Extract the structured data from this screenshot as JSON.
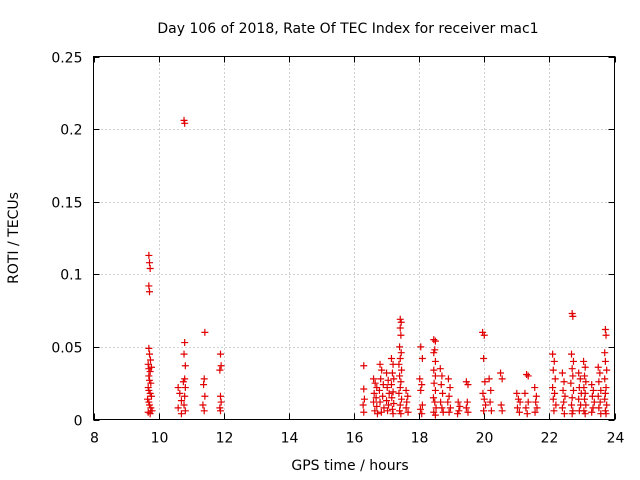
{
  "chart_data": {
    "type": "scatter",
    "title": "Day 106 of 2018, Rate Of TEC Index for receiver mac1",
    "xlabel": "GPS time / hours",
    "ylabel": "ROTI / TECUs",
    "xlim": [
      8,
      24
    ],
    "ylim": [
      0,
      0.25
    ],
    "xticks": [
      8,
      10,
      12,
      14,
      16,
      18,
      20,
      22,
      24
    ],
    "yticks": [
      0,
      0.05,
      0.1,
      0.15,
      0.2,
      0.25
    ],
    "xtick_labels": [
      "8",
      "10",
      "12",
      "14",
      "16",
      "18",
      "20",
      "22",
      "24"
    ],
    "ytick_labels": [
      "0",
      "0.05",
      "0.1",
      "0.15",
      "0.2",
      "0.25"
    ],
    "grid": true,
    "marker": "plus",
    "color": "#e00000",
    "series": [
      {
        "name": "ROTI",
        "points": [
          [
            9.7,
            0.113
          ],
          [
            9.72,
            0.108
          ],
          [
            9.74,
            0.104
          ],
          [
            9.7,
            0.092
          ],
          [
            9.72,
            0.088
          ],
          [
            9.7,
            0.049
          ],
          [
            9.72,
            0.045
          ],
          [
            9.75,
            0.041
          ],
          [
            9.68,
            0.038
          ],
          [
            9.7,
            0.035
          ],
          [
            9.74,
            0.033
          ],
          [
            9.78,
            0.036
          ],
          [
            9.7,
            0.03
          ],
          [
            9.72,
            0.027
          ],
          [
            9.76,
            0.025
          ],
          [
            9.68,
            0.022
          ],
          [
            9.7,
            0.02
          ],
          [
            9.74,
            0.018
          ],
          [
            9.78,
            0.016
          ],
          [
            9.66,
            0.014
          ],
          [
            9.7,
            0.012
          ],
          [
            9.72,
            0.01
          ],
          [
            9.76,
            0.008
          ],
          [
            9.8,
            0.006
          ],
          [
            9.68,
            0.005
          ],
          [
            9.74,
            0.004
          ],
          [
            10.78,
            0.206
          ],
          [
            10.8,
            0.204
          ],
          [
            10.8,
            0.053
          ],
          [
            10.78,
            0.045
          ],
          [
            10.82,
            0.037
          ],
          [
            10.8,
            0.028
          ],
          [
            10.76,
            0.026
          ],
          [
            10.82,
            0.022
          ],
          [
            10.6,
            0.022
          ],
          [
            10.65,
            0.018
          ],
          [
            10.8,
            0.016
          ],
          [
            10.7,
            0.013
          ],
          [
            10.78,
            0.01
          ],
          [
            10.6,
            0.008
          ],
          [
            10.82,
            0.006
          ],
          [
            10.7,
            0.004
          ],
          [
            11.42,
            0.06
          ],
          [
            11.4,
            0.028
          ],
          [
            11.38,
            0.024
          ],
          [
            11.42,
            0.016
          ],
          [
            11.36,
            0.01
          ],
          [
            11.4,
            0.006
          ],
          [
            11.9,
            0.045
          ],
          [
            11.92,
            0.037
          ],
          [
            11.88,
            0.034
          ],
          [
            11.9,
            0.016
          ],
          [
            11.92,
            0.012
          ],
          [
            11.88,
            0.008
          ],
          [
            11.9,
            0.006
          ],
          [
            16.3,
            0.037
          ],
          [
            16.3,
            0.021
          ],
          [
            16.32,
            0.014
          ],
          [
            16.28,
            0.01
          ],
          [
            16.3,
            0.005
          ],
          [
            16.6,
            0.028
          ],
          [
            16.65,
            0.025
          ],
          [
            16.7,
            0.022
          ],
          [
            16.62,
            0.018
          ],
          [
            16.68,
            0.015
          ],
          [
            16.6,
            0.012
          ],
          [
            16.7,
            0.009
          ],
          [
            16.64,
            0.006
          ],
          [
            16.72,
            0.004
          ],
          [
            16.8,
            0.038
          ],
          [
            16.85,
            0.034
          ],
          [
            16.82,
            0.028
          ],
          [
            16.9,
            0.024
          ],
          [
            16.78,
            0.02
          ],
          [
            16.88,
            0.016
          ],
          [
            16.8,
            0.012
          ],
          [
            16.92,
            0.008
          ],
          [
            16.84,
            0.005
          ],
          [
            17.0,
            0.032
          ],
          [
            17.05,
            0.027
          ],
          [
            17.02,
            0.022
          ],
          [
            17.08,
            0.018
          ],
          [
            17.0,
            0.013
          ],
          [
            17.06,
            0.01
          ],
          [
            17.03,
            0.006
          ],
          [
            17.15,
            0.042
          ],
          [
            17.2,
            0.038
          ],
          [
            17.18,
            0.032
          ],
          [
            17.22,
            0.028
          ],
          [
            17.15,
            0.024
          ],
          [
            17.2,
            0.019
          ],
          [
            17.16,
            0.015
          ],
          [
            17.22,
            0.011
          ],
          [
            17.18,
            0.007
          ],
          [
            17.2,
            0.004
          ],
          [
            17.42,
            0.069
          ],
          [
            17.45,
            0.067
          ],
          [
            17.42,
            0.063
          ],
          [
            17.44,
            0.058
          ],
          [
            17.4,
            0.05
          ],
          [
            17.45,
            0.046
          ],
          [
            17.42,
            0.042
          ],
          [
            17.38,
            0.038
          ],
          [
            17.46,
            0.034
          ],
          [
            17.4,
            0.03
          ],
          [
            17.44,
            0.026
          ],
          [
            17.42,
            0.022
          ],
          [
            17.38,
            0.018
          ],
          [
            17.46,
            0.014
          ],
          [
            17.42,
            0.01
          ],
          [
            17.4,
            0.006
          ],
          [
            17.44,
            0.004
          ],
          [
            17.6,
            0.02
          ],
          [
            17.65,
            0.016
          ],
          [
            17.62,
            0.012
          ],
          [
            17.6,
            0.008
          ],
          [
            17.66,
            0.005
          ],
          [
            18.05,
            0.05
          ],
          [
            18.1,
            0.042
          ],
          [
            18.02,
            0.028
          ],
          [
            18.08,
            0.024
          ],
          [
            18.05,
            0.02
          ],
          [
            18.1,
            0.01
          ],
          [
            18.04,
            0.007
          ],
          [
            18.08,
            0.004
          ],
          [
            18.45,
            0.055
          ],
          [
            18.5,
            0.054
          ],
          [
            18.48,
            0.048
          ],
          [
            18.45,
            0.046
          ],
          [
            18.5,
            0.04
          ],
          [
            18.45,
            0.034
          ],
          [
            18.5,
            0.03
          ],
          [
            18.46,
            0.025
          ],
          [
            18.5,
            0.02
          ],
          [
            18.44,
            0.015
          ],
          [
            18.48,
            0.012
          ],
          [
            18.52,
            0.008
          ],
          [
            18.45,
            0.005
          ],
          [
            18.5,
            0.003
          ],
          [
            18.65,
            0.035
          ],
          [
            18.7,
            0.03
          ],
          [
            18.68,
            0.024
          ],
          [
            18.72,
            0.018
          ],
          [
            18.66,
            0.012
          ],
          [
            18.7,
            0.008
          ],
          [
            18.74,
            0.005
          ],
          [
            18.9,
            0.028
          ],
          [
            18.95,
            0.022
          ],
          [
            18.92,
            0.016
          ],
          [
            18.88,
            0.012
          ],
          [
            18.96,
            0.008
          ],
          [
            18.92,
            0.005
          ],
          [
            19.2,
            0.012
          ],
          [
            19.25,
            0.009
          ],
          [
            19.22,
            0.006
          ],
          [
            19.18,
            0.004
          ],
          [
            19.45,
            0.026
          ],
          [
            19.5,
            0.024
          ],
          [
            19.48,
            0.012
          ],
          [
            19.45,
            0.008
          ],
          [
            19.5,
            0.005
          ],
          [
            19.95,
            0.06
          ],
          [
            20.0,
            0.058
          ],
          [
            19.98,
            0.042
          ],
          [
            20.02,
            0.026
          ],
          [
            19.96,
            0.018
          ],
          [
            20.0,
            0.014
          ],
          [
            20.04,
            0.01
          ],
          [
            19.98,
            0.006
          ],
          [
            20.15,
            0.028
          ],
          [
            20.2,
            0.02
          ],
          [
            20.18,
            0.012
          ],
          [
            20.22,
            0.006
          ],
          [
            20.5,
            0.032
          ],
          [
            20.55,
            0.028
          ],
          [
            20.52,
            0.01
          ],
          [
            20.55,
            0.006
          ],
          [
            21.0,
            0.018
          ],
          [
            21.05,
            0.014
          ],
          [
            21.1,
            0.012
          ],
          [
            21.02,
            0.008
          ],
          [
            21.08,
            0.005
          ],
          [
            21.3,
            0.031
          ],
          [
            21.35,
            0.03
          ],
          [
            21.25,
            0.018
          ],
          [
            21.35,
            0.012
          ],
          [
            21.28,
            0.008
          ],
          [
            21.32,
            0.004
          ],
          [
            21.55,
            0.022
          ],
          [
            21.6,
            0.016
          ],
          [
            21.58,
            0.012
          ],
          [
            21.62,
            0.008
          ],
          [
            21.56,
            0.005
          ],
          [
            22.1,
            0.045
          ],
          [
            22.15,
            0.04
          ],
          [
            22.12,
            0.034
          ],
          [
            22.18,
            0.028
          ],
          [
            22.1,
            0.022
          ],
          [
            22.16,
            0.018
          ],
          [
            22.12,
            0.014
          ],
          [
            22.2,
            0.01
          ],
          [
            22.14,
            0.006
          ],
          [
            22.4,
            0.032
          ],
          [
            22.45,
            0.026
          ],
          [
            22.42,
            0.02
          ],
          [
            22.48,
            0.016
          ],
          [
            22.44,
            0.012
          ],
          [
            22.4,
            0.008
          ],
          [
            22.46,
            0.004
          ],
          [
            22.7,
            0.073
          ],
          [
            22.72,
            0.071
          ],
          [
            22.68,
            0.045
          ],
          [
            22.74,
            0.04
          ],
          [
            22.7,
            0.035
          ],
          [
            22.72,
            0.03
          ],
          [
            22.66,
            0.025
          ],
          [
            22.74,
            0.02
          ],
          [
            22.7,
            0.015
          ],
          [
            22.68,
            0.01
          ],
          [
            22.72,
            0.006
          ],
          [
            22.7,
            0.004
          ],
          [
            22.9,
            0.032
          ],
          [
            22.95,
            0.028
          ],
          [
            22.92,
            0.022
          ],
          [
            22.98,
            0.018
          ],
          [
            22.9,
            0.014
          ],
          [
            22.96,
            0.01
          ],
          [
            22.92,
            0.006
          ],
          [
            23.05,
            0.04
          ],
          [
            23.1,
            0.036
          ],
          [
            23.08,
            0.03
          ],
          [
            23.12,
            0.026
          ],
          [
            23.06,
            0.022
          ],
          [
            23.1,
            0.018
          ],
          [
            23.08,
            0.014
          ],
          [
            23.12,
            0.01
          ],
          [
            23.06,
            0.006
          ],
          [
            23.1,
            0.004
          ],
          [
            23.3,
            0.024
          ],
          [
            23.35,
            0.02
          ],
          [
            23.32,
            0.016
          ],
          [
            23.38,
            0.012
          ],
          [
            23.34,
            0.008
          ],
          [
            23.3,
            0.005
          ],
          [
            23.5,
            0.036
          ],
          [
            23.55,
            0.032
          ],
          [
            23.52,
            0.026
          ],
          [
            23.58,
            0.02
          ],
          [
            23.5,
            0.016
          ],
          [
            23.56,
            0.012
          ],
          [
            23.52,
            0.008
          ],
          [
            23.58,
            0.004
          ],
          [
            23.72,
            0.062
          ],
          [
            23.74,
            0.058
          ],
          [
            23.7,
            0.046
          ],
          [
            23.72,
            0.04
          ],
          [
            23.76,
            0.034
          ],
          [
            23.7,
            0.028
          ],
          [
            23.74,
            0.022
          ],
          [
            23.72,
            0.018
          ],
          [
            23.7,
            0.014
          ],
          [
            23.76,
            0.01
          ],
          [
            23.72,
            0.006
          ],
          [
            23.74,
            0.004
          ]
        ]
      }
    ]
  }
}
